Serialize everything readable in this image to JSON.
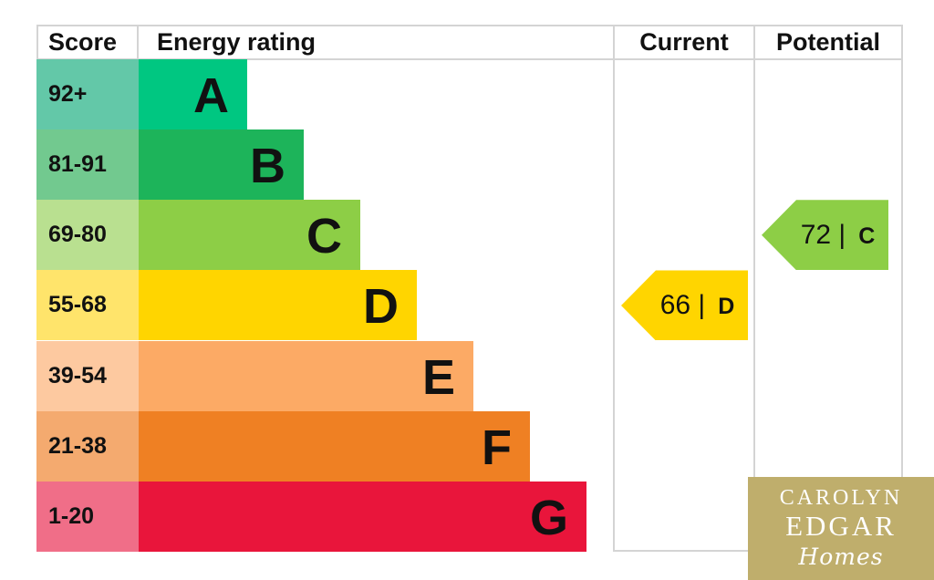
{
  "chart_data": {
    "type": "bar",
    "headers": {
      "score": "Score",
      "rating": "Energy rating",
      "current": "Current",
      "potential": "Potential"
    },
    "bands": [
      {
        "letter": "A",
        "range": "92+",
        "color": "#00c781",
        "score_bg": "#63c8a8"
      },
      {
        "letter": "B",
        "range": "81-91",
        "color": "#1db45a",
        "score_bg": "#72c98f"
      },
      {
        "letter": "C",
        "range": "69-80",
        "color": "#8dce46",
        "score_bg": "#b9e090"
      },
      {
        "letter": "D",
        "range": "55-68",
        "color": "#ffd500",
        "score_bg": "#ffe46b"
      },
      {
        "letter": "E",
        "range": "39-54",
        "color": "#fcaa65",
        "score_bg": "#fdc9a0"
      },
      {
        "letter": "F",
        "range": "21-38",
        "color": "#ef8023",
        "score_bg": "#f4aa6f"
      },
      {
        "letter": "G",
        "range": "1-20",
        "color": "#e9153b",
        "score_bg": "#f06e88"
      }
    ],
    "current": {
      "value": 66,
      "sep": "|",
      "band": "D",
      "color": "#ffd500"
    },
    "potential": {
      "value": 72,
      "sep": "|",
      "band": "C",
      "color": "#8dce46"
    }
  },
  "logo": {
    "line1": "CAROLYN",
    "line2": "EDGAR",
    "line3": "Homes"
  }
}
